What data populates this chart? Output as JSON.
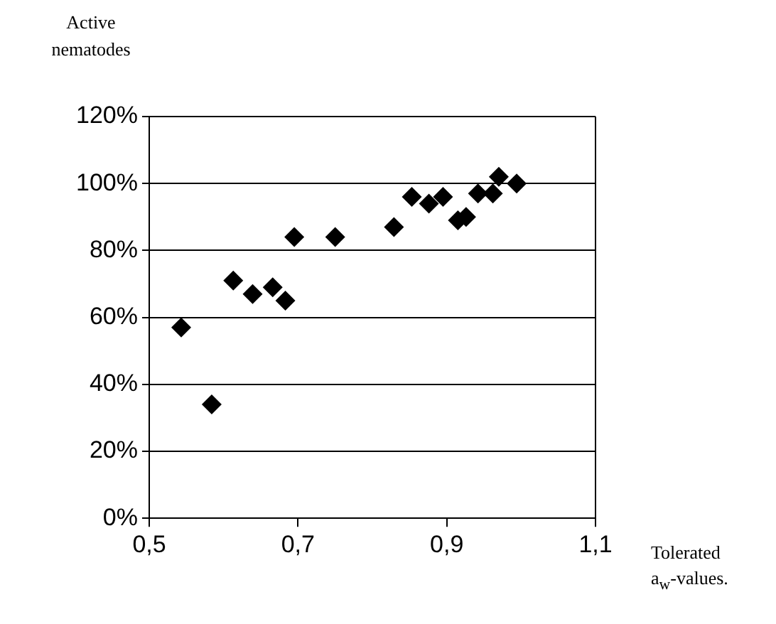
{
  "chart_data": {
    "type": "scatter",
    "xlabel": "Tolerated a$_{w}$-values.",
    "ylabel": "Active nematodes",
    "x": [
      0.543,
      0.584,
      0.613,
      0.639,
      0.666,
      0.683,
      0.695,
      0.75,
      0.829,
      0.853,
      0.876,
      0.895,
      0.915,
      0.926,
      0.942,
      0.962,
      0.97,
      0.994
    ],
    "series": [
      {
        "color": "#000000",
        "values": [
          57,
          34,
          71,
          67,
          69,
          65,
          84,
          84,
          87,
          96,
          94,
          96,
          89,
          90,
          97,
          97,
          102,
          100
        ]
      }
    ],
    "xlim": [
      0.5,
      1.1
    ],
    "xticks": [
      {
        "value": 0.5,
        "label": "0,5"
      },
      {
        "value": 0.7,
        "label": "0,7"
      },
      {
        "value": 0.9,
        "label": "0,9"
      },
      {
        "value": 1.1,
        "label": "1,1"
      }
    ],
    "ylim": [
      0,
      120
    ],
    "yticks": [
      {
        "value": 0,
        "label": "0%"
      },
      {
        "value": 20,
        "label": "20%"
      },
      {
        "value": 40,
        "label": "40%"
      },
      {
        "value": 60,
        "label": "60%"
      },
      {
        "value": 80,
        "label": "80%"
      },
      {
        "value": 100,
        "label": "100%"
      },
      {
        "value": 120,
        "label": "120%"
      }
    ],
    "grid": "y",
    "legend": false,
    "marker": "diamond"
  }
}
